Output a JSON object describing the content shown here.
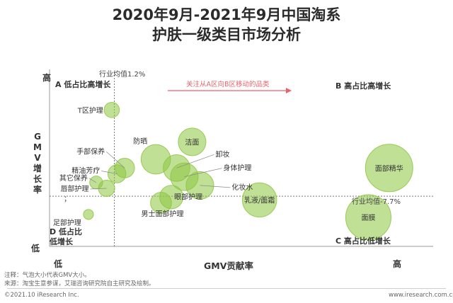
{
  "page": {
    "title_line1": "2020年9月-2021年9月中国淘系",
    "title_line2": "护肤一级类目市场分析",
    "note": "注释：气泡大小代表GMV大小。",
    "source": "来源：淘宝生意参谋，艾瑞咨询研究院自主研究及绘制。",
    "copyright": "©2021.10 iResearch Inc.",
    "website": "www.iresearch.com.cn"
  },
  "chart_data": {
    "type": "bubble",
    "xlabel": "GMV贡献率",
    "ylabel": "GMV增长率",
    "x_low_label": "低",
    "x_high_label": "高",
    "y_low_label": "低",
    "y_high_label": "高",
    "y_reference": {
      "label": "行业均值-7.7%",
      "value": -7.7
    },
    "x_reference": {
      "label": "行业均值1.2%",
      "value": 1.2
    },
    "quadrants": {
      "A": "A 低占比高增长",
      "B": "B 高占比高增长",
      "C": "C 高占比低增长",
      "D": "D 低占比\n低增长"
    },
    "annotation": "关注从A区向B区移动的品类",
    "stray_mark": "；",
    "accent_color": "#e8636a",
    "bubble_color": "#8dc63f",
    "points": [
      {
        "label": "T区护理",
        "x": 1.1,
        "y": 22,
        "size": 2.5
      },
      {
        "label": "防晒",
        "x": 2.8,
        "y": 5,
        "size": 14
      },
      {
        "label": "洁面",
        "x": 4.2,
        "y": 11,
        "size": 12
      },
      {
        "label": "手部保养",
        "x": 1.6,
        "y": 2,
        "size": 5
      },
      {
        "label": "精油芳疗",
        "x": 1.3,
        "y": 0,
        "size": 4
      },
      {
        "label": "其它保养",
        "x": 0.5,
        "y": -3,
        "size": 1.5
      },
      {
        "label": "唇部护理",
        "x": 0.9,
        "y": -5,
        "size": 3
      },
      {
        "label": "足部护理",
        "x": 0.2,
        "y": -14,
        "size": 0.6
      },
      {
        "label": "卸妆",
        "x": 3.6,
        "y": 2,
        "size": 11
      },
      {
        "label": "身体护理",
        "x": 3.9,
        "y": -1,
        "size": 12
      },
      {
        "label": "化妆水",
        "x": 4.5,
        "y": -4,
        "size": 12
      },
      {
        "label": "男士面部护理",
        "x": 3.0,
        "y": -10,
        "size": 6
      },
      {
        "label": "眼部护理",
        "x": 3.4,
        "y": -8,
        "size": 8
      },
      {
        "label": "乳液/面霜",
        "x": 6.8,
        "y": -9,
        "size": 20
      },
      {
        "label": "面部精华",
        "x": 11.8,
        "y": 2,
        "size": 42
      },
      {
        "label": "面膜",
        "x": 11.0,
        "y": -15,
        "size": 38
      }
    ]
  }
}
